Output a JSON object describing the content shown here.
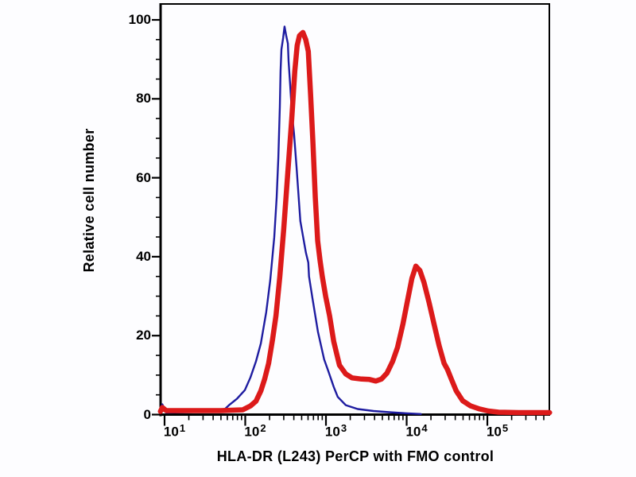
{
  "figure": {
    "xlabel": "HLA-DR (L243) PerCP with FMO control",
    "ylabel": "Relative cell number"
  },
  "chart_data": {
    "type": "line",
    "subtype": "flow-cytometry-histogram-overlay",
    "title": "",
    "xlabel": "HLA-DR (L243) PerCP with FMO control",
    "ylabel": "Relative cell number",
    "x_scale": "log10",
    "x_range_log10": [
      0.951,
      5.768
    ],
    "ylim": [
      0,
      104
    ],
    "grid": false,
    "legend": "none",
    "axis_color": "#000000",
    "x_ticks": [
      {
        "base": "10",
        "exp": "1",
        "value": 10
      },
      {
        "base": "10",
        "exp": "2",
        "value": 100
      },
      {
        "base": "10",
        "exp": "3",
        "value": 1000
      },
      {
        "base": "10",
        "exp": "4",
        "value": 10000
      },
      {
        "base": "10",
        "exp": "5",
        "value": 100000
      }
    ],
    "x_minor_multiples": [
      2,
      3,
      4,
      5,
      6,
      7,
      8,
      9
    ],
    "y_major_ticks": [
      0,
      20,
      40,
      60,
      80,
      100
    ],
    "y_minor_step": 5,
    "series": [
      {
        "name": "FMO control (blue)",
        "color": "#1e1ca0",
        "line_width": 2.4,
        "peak": {
          "x": 310,
          "y": 98
        },
        "points": [
          [
            8.9,
            0.4
          ],
          [
            9.4,
            2.6
          ],
          [
            10.5,
            0.5
          ],
          [
            30,
            0.7
          ],
          [
            52,
            0.8
          ],
          [
            63,
            2.4
          ],
          [
            79,
            4.0
          ],
          [
            99,
            6.2
          ],
          [
            116,
            9.4
          ],
          [
            136,
            13.5
          ],
          [
            156,
            18
          ],
          [
            182,
            26
          ],
          [
            204,
            34
          ],
          [
            229,
            45
          ],
          [
            245,
            55
          ],
          [
            257,
            65
          ],
          [
            268,
            78
          ],
          [
            274,
            87
          ],
          [
            281,
            92.5
          ],
          [
            295,
            95.5
          ],
          [
            307,
            98.3
          ],
          [
            322,
            96
          ],
          [
            337,
            94
          ],
          [
            344,
            89.5
          ],
          [
            360,
            83.5
          ],
          [
            377,
            77
          ],
          [
            403,
            71
          ],
          [
            431,
            63
          ],
          [
            482,
            49
          ],
          [
            564,
            41
          ],
          [
            604,
            38.5
          ],
          [
            617,
            35
          ],
          [
            680,
            29.5
          ],
          [
            795,
            21
          ],
          [
            950,
            14
          ],
          [
            1070,
            11
          ],
          [
            1250,
            7
          ],
          [
            1400,
            4.5
          ],
          [
            1760,
            2.4
          ],
          [
            2470,
            1.4
          ],
          [
            3900,
            0.9
          ],
          [
            6100,
            0.6
          ],
          [
            8600,
            0.4
          ],
          [
            15000,
            0.15
          ]
        ]
      },
      {
        "name": "HLA-DR (L243) PerCP (red)",
        "color": "#dc1a1a",
        "line_width": 6.5,
        "peaks": [
          {
            "x": 518,
            "y": 96.8
          },
          {
            "x": 13000,
            "y": 37.6
          }
        ],
        "points": [
          [
            8.9,
            0.8
          ],
          [
            9.4,
            1.8
          ],
          [
            10.5,
            1.0
          ],
          [
            50,
            1.0
          ],
          [
            93,
            1.2
          ],
          [
            116,
            2.2
          ],
          [
            136,
            3.4
          ],
          [
            156,
            6
          ],
          [
            174,
            9
          ],
          [
            195,
            13
          ],
          [
            218,
            19
          ],
          [
            240,
            25
          ],
          [
            268,
            35
          ],
          [
            300,
            47
          ],
          [
            336,
            61
          ],
          [
            377,
            75
          ],
          [
            411,
            87
          ],
          [
            440,
            93.5
          ],
          [
            470,
            96
          ],
          [
            518,
            96.8
          ],
          [
            562,
            95
          ],
          [
            604,
            92
          ],
          [
            645,
            81
          ],
          [
            690,
            69
          ],
          [
            738,
            55
          ],
          [
            790,
            44
          ],
          [
            845,
            39
          ],
          [
            900,
            35
          ],
          [
            990,
            30
          ],
          [
            1110,
            25
          ],
          [
            1250,
            18.5
          ],
          [
            1470,
            12.5
          ],
          [
            1760,
            10.3
          ],
          [
            2100,
            9.3
          ],
          [
            2760,
            9.0
          ],
          [
            3460,
            8.9
          ],
          [
            4150,
            8.5
          ],
          [
            4870,
            9.0
          ],
          [
            5700,
            10.5
          ],
          [
            6700,
            13.5
          ],
          [
            7700,
            17
          ],
          [
            9000,
            23
          ],
          [
            10400,
            29.5
          ],
          [
            11600,
            34.5
          ],
          [
            13000,
            37.6
          ],
          [
            14600,
            36.5
          ],
          [
            16400,
            33.5
          ],
          [
            18900,
            28.5
          ],
          [
            21800,
            23
          ],
          [
            25200,
            17.5
          ],
          [
            29100,
            13
          ],
          [
            31900,
            11.5
          ],
          [
            35800,
            9
          ],
          [
            41200,
            6
          ],
          [
            49500,
            3.5
          ],
          [
            62000,
            2.2
          ],
          [
            78000,
            1.5
          ],
          [
            103000,
            0.9
          ],
          [
            138000,
            0.6
          ],
          [
            243000,
            0.5
          ],
          [
            590000,
            0.5
          ]
        ]
      }
    ]
  }
}
